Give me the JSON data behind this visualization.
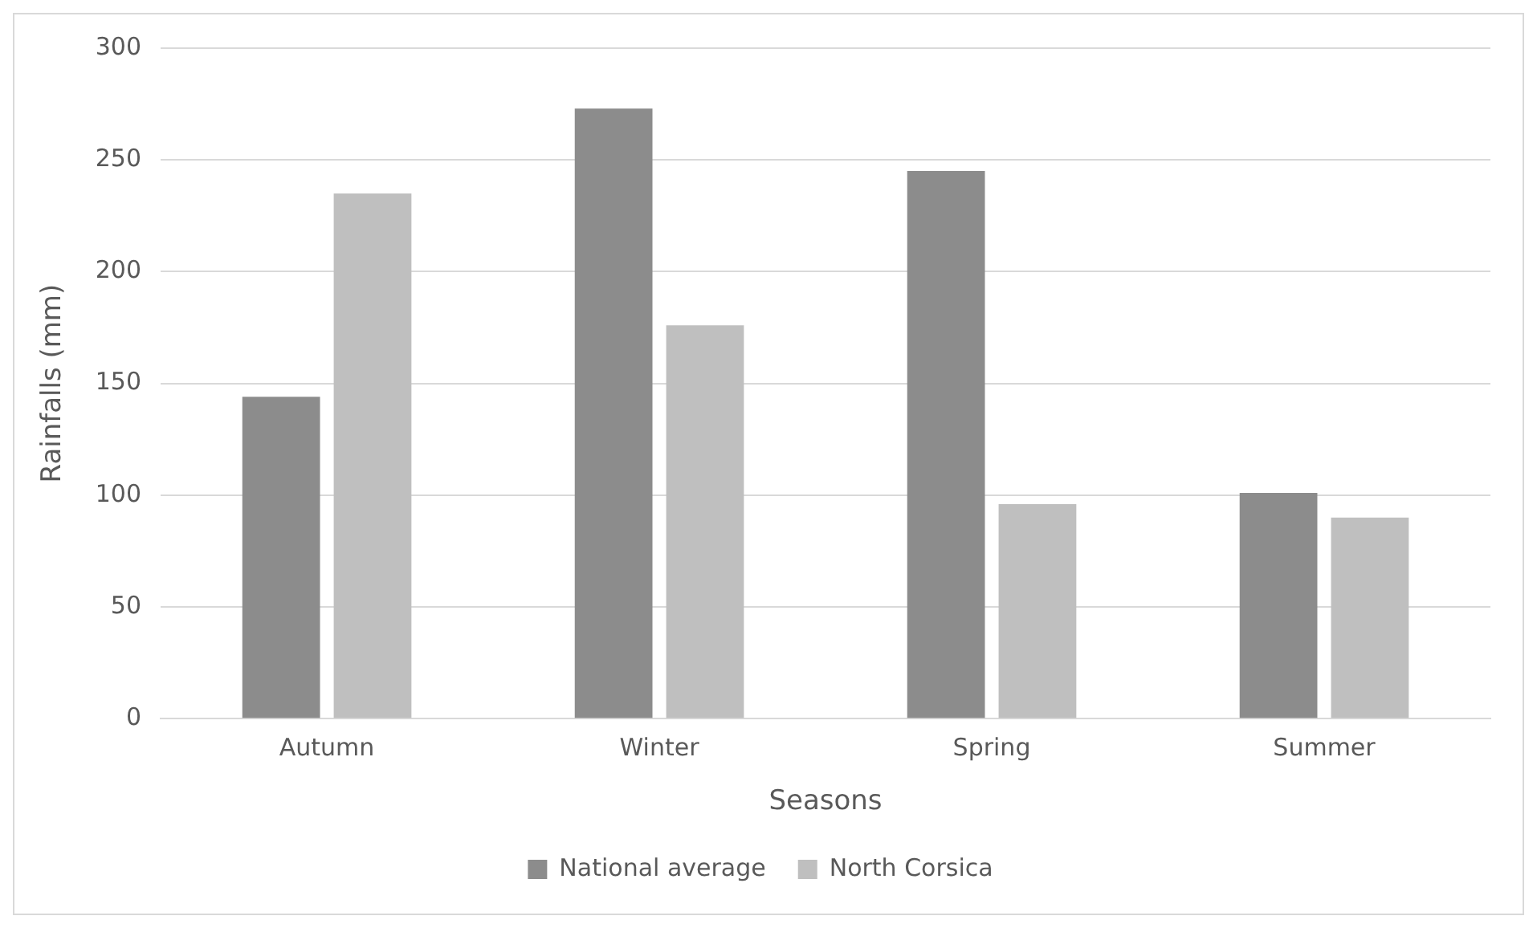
{
  "chart_data": {
    "type": "bar",
    "xlabel": "Seasons",
    "ylabel": "Rainfalls (mm)",
    "categories": [
      "Autumn",
      "Winter",
      "Spring",
      "Summer"
    ],
    "series": [
      {
        "name": "National average",
        "color": "#8c8c8c",
        "values": [
          144,
          273,
          245,
          101
        ]
      },
      {
        "name": "North Corsica",
        "color": "#bfbfbf",
        "values": [
          235,
          176,
          96,
          90
        ]
      }
    ],
    "ylim": [
      0,
      300
    ],
    "yticks": [
      0,
      50,
      100,
      150,
      200,
      250,
      300
    ],
    "grid": "y",
    "legend": "bottom"
  }
}
